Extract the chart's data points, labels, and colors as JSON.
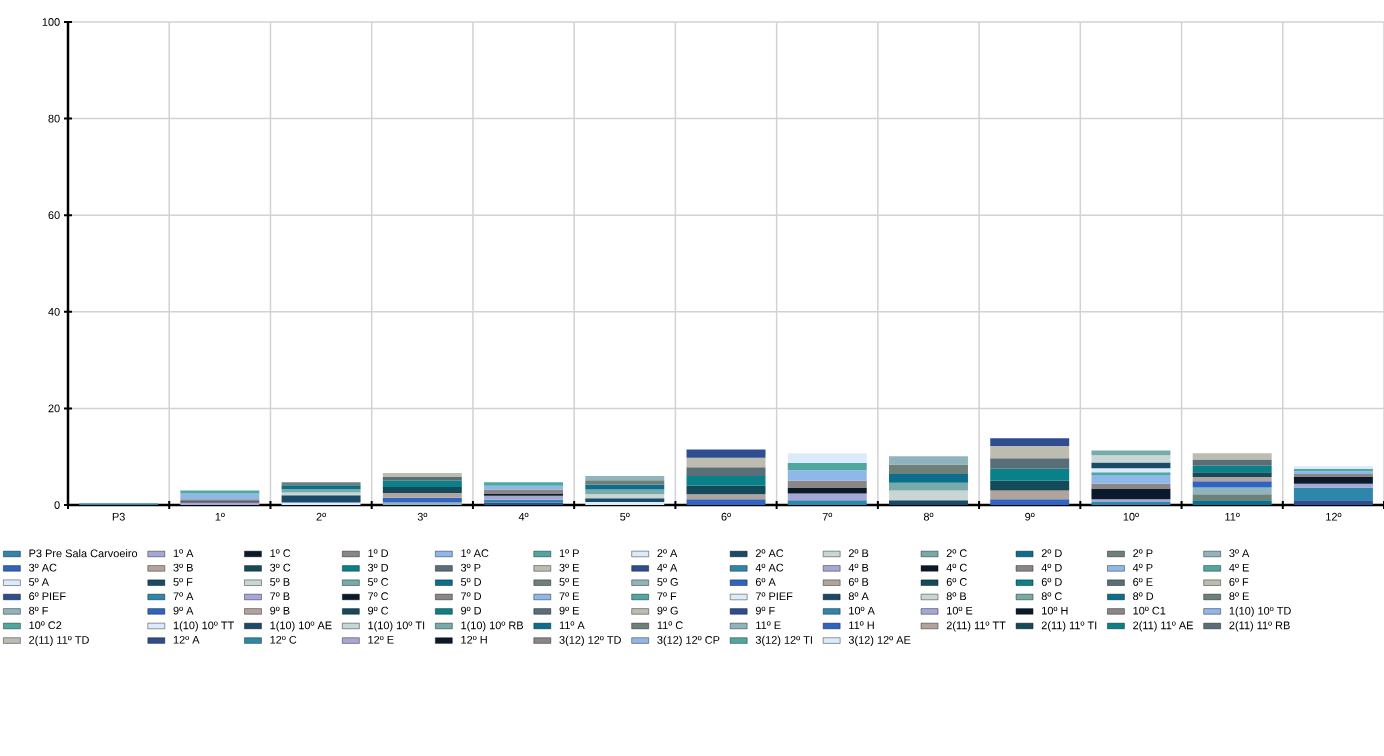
{
  "chart_data": {
    "type": "bar",
    "stacked": true,
    "grid": true,
    "legend": "bottom",
    "categories": [
      "P3",
      "1º",
      "2º",
      "3º",
      "4º",
      "5º",
      "6º",
      "7º",
      "8º",
      "9º",
      "10º",
      "11º",
      "12º"
    ],
    "ylim": [
      0,
      100
    ],
    "yticks": [
      0,
      20,
      40,
      60,
      80,
      100
    ],
    "series": [
      {
        "name": "P3 Pre Sala Carvoeiro",
        "color": "#2e86ab",
        "values": [
          0.3,
          null,
          null,
          null,
          null,
          null,
          null,
          null,
          null,
          null,
          null,
          null,
          null
        ]
      },
      {
        "name": "1º A",
        "color": "#a5a8d6",
        "values": [
          null,
          0.5,
          null,
          null,
          null,
          null,
          null,
          null,
          null,
          null,
          null,
          null,
          null
        ]
      },
      {
        "name": "1º C",
        "color": "#0a1a2a",
        "values": [
          null,
          0.3,
          null,
          null,
          null,
          null,
          null,
          null,
          null,
          null,
          null,
          null,
          null
        ]
      },
      {
        "name": "1º D",
        "color": "#8c8585",
        "values": [
          null,
          0.4,
          null,
          null,
          null,
          null,
          null,
          null,
          null,
          null,
          null,
          null,
          null
        ]
      },
      {
        "name": "1º AC",
        "color": "#8fb8e8",
        "values": [
          null,
          1.2,
          null,
          null,
          null,
          null,
          null,
          null,
          null,
          null,
          null,
          null,
          null
        ]
      },
      {
        "name": "1º P",
        "color": "#4fa8a0",
        "values": [
          null,
          0.6,
          null,
          null,
          null,
          null,
          null,
          null,
          null,
          null,
          null,
          null,
          null
        ]
      },
      {
        "name": "2º A",
        "color": "#dcebfa",
        "values": [
          null,
          null,
          0.5,
          null,
          null,
          null,
          null,
          null,
          null,
          null,
          null,
          null,
          null
        ]
      },
      {
        "name": "2º AC",
        "color": "#1a4a68",
        "values": [
          null,
          null,
          1.5,
          null,
          null,
          null,
          null,
          null,
          null,
          null,
          null,
          null,
          null
        ]
      },
      {
        "name": "2º B",
        "color": "#c8d6d6",
        "values": [
          null,
          null,
          0.6,
          null,
          null,
          null,
          null,
          null,
          null,
          null,
          null,
          null,
          null
        ]
      },
      {
        "name": "2º C",
        "color": "#78aaaa",
        "values": [
          null,
          null,
          0.7,
          null,
          null,
          null,
          null,
          null,
          null,
          null,
          null,
          null,
          null
        ]
      },
      {
        "name": "2º D",
        "color": "#0a6e8c",
        "values": [
          null,
          null,
          0.8,
          null,
          null,
          null,
          null,
          null,
          null,
          null,
          null,
          null,
          null
        ]
      },
      {
        "name": "2º P",
        "color": "#6e807a",
        "values": [
          null,
          null,
          0.6,
          null,
          null,
          null,
          null,
          null,
          null,
          null,
          null,
          null,
          null
        ]
      },
      {
        "name": "3º A",
        "color": "#90b4bc",
        "values": [
          null,
          null,
          null,
          0.5,
          null,
          null,
          null,
          null,
          null,
          null,
          null,
          null,
          null
        ]
      },
      {
        "name": "3º AC",
        "color": "#2f64c2",
        "values": [
          null,
          null,
          null,
          1.0,
          null,
          null,
          null,
          null,
          null,
          null,
          null,
          null,
          null
        ]
      },
      {
        "name": "3º B",
        "color": "#b2a49c",
        "values": [
          null,
          null,
          null,
          1.0,
          null,
          null,
          null,
          null,
          null,
          null,
          null,
          null,
          null
        ]
      },
      {
        "name": "3º C",
        "color": "#154a5a",
        "values": [
          null,
          null,
          null,
          1.2,
          null,
          null,
          null,
          null,
          null,
          null,
          null,
          null,
          null
        ]
      },
      {
        "name": "3º D",
        "color": "#0a8088",
        "values": [
          null,
          null,
          null,
          1.3,
          null,
          null,
          null,
          null,
          null,
          null,
          null,
          null,
          null
        ]
      },
      {
        "name": "3º P",
        "color": "#5a6e78",
        "values": [
          null,
          null,
          null,
          0.8,
          null,
          null,
          null,
          null,
          null,
          null,
          null,
          null,
          null
        ]
      },
      {
        "name": "3º E",
        "color": "#bcbcb0",
        "values": [
          null,
          null,
          null,
          0.8,
          null,
          null,
          null,
          null,
          null,
          null,
          null,
          null,
          null
        ]
      },
      {
        "name": "4º A",
        "color": "#2e4e90",
        "values": [
          null,
          null,
          null,
          null,
          0.5,
          null,
          null,
          null,
          null,
          null,
          null,
          null,
          null
        ]
      },
      {
        "name": "4º AC",
        "color": "#2e86ab",
        "values": [
          null,
          null,
          null,
          null,
          0.6,
          null,
          null,
          null,
          null,
          null,
          null,
          null,
          null
        ]
      },
      {
        "name": "4º B",
        "color": "#a5a8d6",
        "values": [
          null,
          null,
          null,
          null,
          0.8,
          null,
          null,
          null,
          null,
          null,
          null,
          null,
          null
        ]
      },
      {
        "name": "4º C",
        "color": "#0a1a2a",
        "values": [
          null,
          null,
          null,
          null,
          0.5,
          null,
          null,
          null,
          null,
          null,
          null,
          null,
          null
        ]
      },
      {
        "name": "4º D",
        "color": "#8c8585",
        "values": [
          null,
          null,
          null,
          null,
          0.8,
          null,
          null,
          null,
          null,
          null,
          null,
          null,
          null
        ]
      },
      {
        "name": "4º P",
        "color": "#8fb8e8",
        "values": [
          null,
          null,
          null,
          null,
          0.8,
          null,
          null,
          null,
          null,
          null,
          null,
          null,
          null
        ]
      },
      {
        "name": "4º E",
        "color": "#4fa8a0",
        "values": [
          null,
          null,
          null,
          null,
          0.7,
          null,
          null,
          null,
          null,
          null,
          null,
          null,
          null
        ]
      },
      {
        "name": "5º A",
        "color": "#dcebfa",
        "values": [
          null,
          null,
          null,
          null,
          null,
          0.6,
          null,
          null,
          null,
          null,
          null,
          null,
          null
        ]
      },
      {
        "name": "5º F",
        "color": "#1a4a68",
        "values": [
          null,
          null,
          null,
          null,
          null,
          0.8,
          null,
          null,
          null,
          null,
          null,
          null,
          null
        ]
      },
      {
        "name": "5º B",
        "color": "#c8d6d6",
        "values": [
          null,
          null,
          null,
          null,
          null,
          0.8,
          null,
          null,
          null,
          null,
          null,
          null,
          null
        ]
      },
      {
        "name": "5º C",
        "color": "#78aaaa",
        "values": [
          null,
          null,
          null,
          null,
          null,
          1.0,
          null,
          null,
          null,
          null,
          null,
          null,
          null
        ]
      },
      {
        "name": "5º D",
        "color": "#0a6e8c",
        "values": [
          null,
          null,
          null,
          null,
          null,
          1.0,
          null,
          null,
          null,
          null,
          null,
          null,
          null
        ]
      },
      {
        "name": "5º E",
        "color": "#6e807a",
        "values": [
          null,
          null,
          null,
          null,
          null,
          0.9,
          null,
          null,
          null,
          null,
          null,
          null,
          null
        ]
      },
      {
        "name": "5º G",
        "color": "#90b4bc",
        "values": [
          null,
          null,
          null,
          null,
          null,
          0.9,
          null,
          null,
          null,
          null,
          null,
          null,
          null
        ]
      },
      {
        "name": "6º A",
        "color": "#2f64c2",
        "values": [
          null,
          null,
          null,
          null,
          null,
          null,
          1.2,
          null,
          null,
          null,
          null,
          null,
          null
        ]
      },
      {
        "name": "6º B",
        "color": "#b2a49c",
        "values": [
          null,
          null,
          null,
          null,
          null,
          null,
          1.0,
          null,
          null,
          null,
          null,
          null,
          null
        ]
      },
      {
        "name": "6º C",
        "color": "#154a5a",
        "values": [
          null,
          null,
          null,
          null,
          null,
          null,
          1.8,
          null,
          null,
          null,
          null,
          null,
          null
        ]
      },
      {
        "name": "6º D",
        "color": "#0a8088",
        "values": [
          null,
          null,
          null,
          null,
          null,
          null,
          2.0,
          null,
          null,
          null,
          null,
          null,
          null
        ]
      },
      {
        "name": "6º E",
        "color": "#5a6e78",
        "values": [
          null,
          null,
          null,
          null,
          null,
          null,
          1.8,
          null,
          null,
          null,
          null,
          null,
          null
        ]
      },
      {
        "name": "6º F",
        "color": "#bcbcb0",
        "values": [
          null,
          null,
          null,
          null,
          null,
          null,
          2.0,
          null,
          null,
          null,
          null,
          null,
          null
        ]
      },
      {
        "name": "6º PIEF",
        "color": "#2e4e90",
        "values": [
          null,
          null,
          null,
          null,
          null,
          null,
          1.7,
          null,
          null,
          null,
          null,
          null,
          null
        ]
      },
      {
        "name": "7º A",
        "color": "#2e86ab",
        "values": [
          null,
          null,
          null,
          null,
          null,
          null,
          null,
          1.0,
          null,
          null,
          null,
          null,
          null
        ]
      },
      {
        "name": "7º B",
        "color": "#a5a8d6",
        "values": [
          null,
          null,
          null,
          null,
          null,
          null,
          null,
          1.4,
          null,
          null,
          null,
          null,
          null
        ]
      },
      {
        "name": "7º C",
        "color": "#0a1a2a",
        "values": [
          null,
          null,
          null,
          null,
          null,
          null,
          null,
          1.2,
          null,
          null,
          null,
          null,
          null
        ]
      },
      {
        "name": "7º D",
        "color": "#8c8585",
        "values": [
          null,
          null,
          null,
          null,
          null,
          null,
          null,
          1.4,
          null,
          null,
          null,
          null,
          null
        ]
      },
      {
        "name": "7º E",
        "color": "#8fb8e8",
        "values": [
          null,
          null,
          null,
          null,
          null,
          null,
          null,
          2.2,
          null,
          null,
          null,
          null,
          null
        ]
      },
      {
        "name": "7º F",
        "color": "#4fa8a0",
        "values": [
          null,
          null,
          null,
          null,
          null,
          null,
          null,
          1.5,
          null,
          null,
          null,
          null,
          null
        ]
      },
      {
        "name": "7º PIEF",
        "color": "#dcebfa",
        "values": [
          null,
          null,
          null,
          null,
          null,
          null,
          null,
          2.0,
          null,
          null,
          null,
          null,
          null
        ]
      },
      {
        "name": "8º A",
        "color": "#1a4a68",
        "values": [
          null,
          null,
          null,
          null,
          null,
          null,
          null,
          null,
          1.0,
          null,
          null,
          null,
          null
        ]
      },
      {
        "name": "8º B",
        "color": "#c8d6d6",
        "values": [
          null,
          null,
          null,
          null,
          null,
          null,
          null,
          null,
          2.0,
          null,
          null,
          null,
          null
        ]
      },
      {
        "name": "8º C",
        "color": "#78aaaa",
        "values": [
          null,
          null,
          null,
          null,
          null,
          null,
          null,
          null,
          1.6,
          null,
          null,
          null,
          null
        ]
      },
      {
        "name": "8º D",
        "color": "#0a6e8c",
        "values": [
          null,
          null,
          null,
          null,
          null,
          null,
          null,
          null,
          1.8,
          null,
          null,
          null,
          null
        ]
      },
      {
        "name": "8º E",
        "color": "#6e807a",
        "values": [
          null,
          null,
          null,
          null,
          null,
          null,
          null,
          null,
          2.0,
          null,
          null,
          null,
          null
        ]
      },
      {
        "name": "8º F",
        "color": "#90b4bc",
        "values": [
          null,
          null,
          null,
          null,
          null,
          null,
          null,
          null,
          1.7,
          null,
          null,
          null,
          null
        ]
      },
      {
        "name": "9º A",
        "color": "#2f64c2",
        "values": [
          null,
          null,
          null,
          null,
          null,
          null,
          null,
          null,
          null,
          1.2,
          null,
          null,
          null
        ]
      },
      {
        "name": "9º B",
        "color": "#b2a49c",
        "values": [
          null,
          null,
          null,
          null,
          null,
          null,
          null,
          null,
          null,
          1.8,
          null,
          null,
          null
        ]
      },
      {
        "name": "9º C",
        "color": "#154a5a",
        "values": [
          null,
          null,
          null,
          null,
          null,
          null,
          null,
          null,
          null,
          2.0,
          null,
          null,
          null
        ]
      },
      {
        "name": "9º D",
        "color": "#0a8088",
        "values": [
          null,
          null,
          null,
          null,
          null,
          null,
          null,
          null,
          null,
          2.5,
          null,
          null,
          null
        ]
      },
      {
        "name": "9º E",
        "color": "#5a6e78",
        "values": [
          null,
          null,
          null,
          null,
          null,
          null,
          null,
          null,
          null,
          2.2,
          null,
          null,
          null
        ]
      },
      {
        "name": "9º G",
        "color": "#bcbcb0",
        "values": [
          null,
          null,
          null,
          null,
          null,
          null,
          null,
          null,
          null,
          2.5,
          null,
          null,
          null
        ]
      },
      {
        "name": "9º F",
        "color": "#2e4e90",
        "values": [
          null,
          null,
          null,
          null,
          null,
          null,
          null,
          null,
          null,
          1.6,
          null,
          null,
          null
        ]
      },
      {
        "name": "10º A",
        "color": "#2e86ab",
        "values": [
          null,
          null,
          null,
          null,
          null,
          null,
          null,
          null,
          null,
          null,
          0.6,
          null,
          null
        ]
      },
      {
        "name": "10º E",
        "color": "#a5a8d6",
        "values": [
          null,
          null,
          null,
          null,
          null,
          null,
          null,
          null,
          null,
          null,
          0.6,
          null,
          null
        ]
      },
      {
        "name": "10º H",
        "color": "#0a1a2a",
        "values": [
          null,
          null,
          null,
          null,
          null,
          null,
          null,
          null,
          null,
          null,
          2.2,
          null,
          null
        ]
      },
      {
        "name": "10º C1",
        "color": "#8c8585",
        "values": [
          null,
          null,
          null,
          null,
          null,
          null,
          null,
          null,
          null,
          null,
          1.0,
          null,
          null
        ]
      },
      {
        "name": "1(10) 10º TD",
        "color": "#8fb8e8",
        "values": [
          null,
          null,
          null,
          null,
          null,
          null,
          null,
          null,
          null,
          null,
          1.8,
          null,
          null
        ]
      },
      {
        "name": "10º C2",
        "color": "#4fa8a0",
        "values": [
          null,
          null,
          null,
          null,
          null,
          null,
          null,
          null,
          null,
          null,
          0.6,
          null,
          null
        ]
      },
      {
        "name": "1(10) 10º TT",
        "color": "#dcebfa",
        "values": [
          null,
          null,
          null,
          null,
          null,
          null,
          null,
          null,
          null,
          null,
          0.8,
          null,
          null
        ]
      },
      {
        "name": "1(10) 10º AE",
        "color": "#1a4a68",
        "values": [
          null,
          null,
          null,
          null,
          null,
          null,
          null,
          null,
          null,
          null,
          1.2,
          null,
          null
        ]
      },
      {
        "name": "1(10) 10º TI",
        "color": "#c8d6d6",
        "values": [
          null,
          null,
          null,
          null,
          null,
          null,
          null,
          null,
          null,
          null,
          1.5,
          null,
          null
        ]
      },
      {
        "name": "1(10) 10º RB",
        "color": "#78aaaa",
        "values": [
          null,
          null,
          null,
          null,
          null,
          null,
          null,
          null,
          null,
          null,
          1.0,
          null,
          null
        ]
      },
      {
        "name": "11º A",
        "color": "#0a6e8c",
        "values": [
          null,
          null,
          null,
          null,
          null,
          null,
          null,
          null,
          null,
          null,
          null,
          1.0,
          null
        ]
      },
      {
        "name": "11º C",
        "color": "#6e807a",
        "values": [
          null,
          null,
          null,
          null,
          null,
          null,
          null,
          null,
          null,
          null,
          null,
          1.2,
          null
        ]
      },
      {
        "name": "11º E",
        "color": "#90b4bc",
        "values": [
          null,
          null,
          null,
          null,
          null,
          null,
          null,
          null,
          null,
          null,
          null,
          1.4,
          null
        ]
      },
      {
        "name": "11º H",
        "color": "#2f64c2",
        "values": [
          null,
          null,
          null,
          null,
          null,
          null,
          null,
          null,
          null,
          null,
          null,
          1.3,
          null
        ]
      },
      {
        "name": "2(11) 11º TT",
        "color": "#b2a49c",
        "values": [
          null,
          null,
          null,
          null,
          null,
          null,
          null,
          null,
          null,
          null,
          null,
          0.9,
          null
        ]
      },
      {
        "name": "2(11) 11º TI",
        "color": "#154a5a",
        "values": [
          null,
          null,
          null,
          null,
          null,
          null,
          null,
          null,
          null,
          null,
          null,
          1.0,
          null
        ]
      },
      {
        "name": "2(11) 11º AE",
        "color": "#0a8088",
        "values": [
          null,
          null,
          null,
          null,
          null,
          null,
          null,
          null,
          null,
          null,
          null,
          1.3,
          null
        ]
      },
      {
        "name": "2(11) 11º RB",
        "color": "#5a6e78",
        "values": [
          null,
          null,
          null,
          null,
          null,
          null,
          null,
          null,
          null,
          null,
          null,
          1.3,
          null
        ]
      },
      {
        "name": "2(11) 11º TD",
        "color": "#bcbcb0",
        "values": [
          null,
          null,
          null,
          null,
          null,
          null,
          null,
          null,
          null,
          null,
          null,
          1.3,
          null
        ]
      },
      {
        "name": "12º A",
        "color": "#2e4e90",
        "values": [
          null,
          null,
          null,
          null,
          null,
          null,
          null,
          null,
          null,
          null,
          null,
          null,
          1.0
        ]
      },
      {
        "name": "12º C",
        "color": "#2e86ab",
        "values": [
          null,
          null,
          null,
          null,
          null,
          null,
          null,
          null,
          null,
          null,
          null,
          null,
          2.6
        ]
      },
      {
        "name": "12º E",
        "color": "#a5a8d6",
        "values": [
          null,
          null,
          null,
          null,
          null,
          null,
          null,
          null,
          null,
          null,
          null,
          null,
          0.8
        ]
      },
      {
        "name": "12º H",
        "color": "#0a1a2a",
        "values": [
          null,
          null,
          null,
          null,
          null,
          null,
          null,
          null,
          null,
          null,
          null,
          null,
          1.4
        ]
      },
      {
        "name": "3(12) 12º TD",
        "color": "#8c8585",
        "values": [
          null,
          null,
          null,
          null,
          null,
          null,
          null,
          null,
          null,
          null,
          null,
          null,
          0.6
        ]
      },
      {
        "name": "3(12) 12º CP",
        "color": "#8fb8e8",
        "values": [
          null,
          null,
          null,
          null,
          null,
          null,
          null,
          null,
          null,
          null,
          null,
          null,
          0.6
        ]
      },
      {
        "name": "3(12) 12º TI",
        "color": "#4fa8a0",
        "values": [
          null,
          null,
          null,
          null,
          null,
          null,
          null,
          null,
          null,
          null,
          null,
          null,
          0.5
        ]
      },
      {
        "name": "3(12) 12º AE",
        "color": "#dcebfa",
        "values": [
          null,
          null,
          null,
          null,
          null,
          null,
          null,
          null,
          null,
          null,
          null,
          null,
          0.5
        ]
      }
    ]
  }
}
